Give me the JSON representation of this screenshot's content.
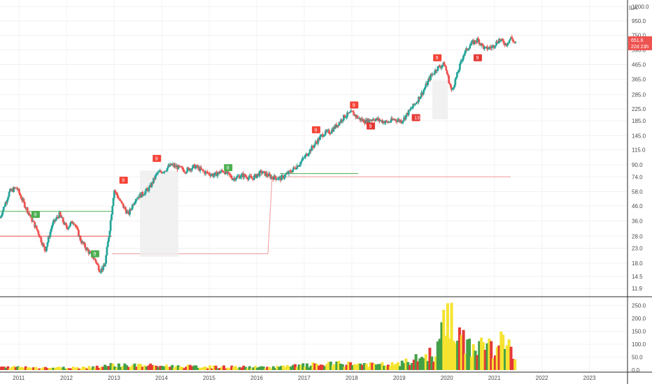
{
  "chart_data": {
    "type": "candlestick",
    "scale": "log",
    "currency": "ILA",
    "price_ticks": [
      1200.0,
      950.0,
      750.0,
      590.0,
      465.0,
      365.0,
      285.0,
      225.0,
      185.0,
      145.0,
      115.0,
      90.0,
      74.0,
      58.0,
      46.0,
      36.0,
      28.0,
      23.0,
      18.0,
      14.5,
      11.9
    ],
    "volume_ticks": [
      250.0,
      200.0,
      150.0,
      100.0,
      50.0,
      0.0
    ],
    "x_labels": [
      "2011",
      "2012",
      "2013",
      "2014",
      "2015",
      "2016",
      "2017",
      "2018",
      "2019",
      "2020",
      "2021",
      "2022",
      "2023"
    ],
    "x_start_year": 2010.6,
    "x_end_year": 2023.8,
    "last_price": "651.6",
    "countdown": "22d 23h",
    "colors": {
      "up": "#26a69a",
      "down": "#ef5350",
      "up_vol": "#43a047",
      "down_vol": "#e53935",
      "yellow_vol": "#f5e330",
      "setup_up": "#4caf50",
      "setup_down": "#f44336"
    },
    "price_path": [
      [
        2010.6,
        38
      ],
      [
        2010.8,
        58
      ],
      [
        2010.95,
        62
      ],
      [
        2011.1,
        48
      ],
      [
        2011.25,
        38
      ],
      [
        2011.4,
        30
      ],
      [
        2011.55,
        22
      ],
      [
        2011.7,
        34
      ],
      [
        2011.85,
        40
      ],
      [
        2012.0,
        32
      ],
      [
        2012.15,
        36
      ],
      [
        2012.3,
        26
      ],
      [
        2012.45,
        22
      ],
      [
        2012.6,
        19
      ],
      [
        2012.7,
        16
      ],
      [
        2012.8,
        17
      ],
      [
        2012.9,
        30
      ],
      [
        2013.0,
        60
      ],
      [
        2013.15,
        48
      ],
      [
        2013.3,
        40
      ],
      [
        2013.45,
        52
      ],
      [
        2013.6,
        56
      ],
      [
        2013.75,
        62
      ],
      [
        2013.9,
        78
      ],
      [
        2014.05,
        82
      ],
      [
        2014.2,
        90
      ],
      [
        2014.35,
        86
      ],
      [
        2014.5,
        82
      ],
      [
        2014.7,
        88
      ],
      [
        2014.9,
        80
      ],
      [
        2015.1,
        76
      ],
      [
        2015.3,
        82
      ],
      [
        2015.5,
        72
      ],
      [
        2015.7,
        76
      ],
      [
        2015.9,
        72
      ],
      [
        2016.1,
        80
      ],
      [
        2016.3,
        74
      ],
      [
        2016.5,
        72
      ],
      [
        2016.7,
        80
      ],
      [
        2016.9,
        92
      ],
      [
        2017.1,
        112
      ],
      [
        2017.25,
        130
      ],
      [
        2017.4,
        150
      ],
      [
        2017.55,
        155
      ],
      [
        2017.7,
        175
      ],
      [
        2017.85,
        200
      ],
      [
        2018.0,
        212
      ],
      [
        2018.15,
        192
      ],
      [
        2018.3,
        182
      ],
      [
        2018.45,
        192
      ],
      [
        2018.6,
        186
      ],
      [
        2018.75,
        180
      ],
      [
        2018.9,
        190
      ],
      [
        2019.05,
        184
      ],
      [
        2019.2,
        215
      ],
      [
        2019.35,
        250
      ],
      [
        2019.5,
        300
      ],
      [
        2019.65,
        380
      ],
      [
        2019.8,
        440
      ],
      [
        2019.95,
        470
      ],
      [
        2020.1,
        300
      ],
      [
        2020.2,
        380
      ],
      [
        2020.35,
        550
      ],
      [
        2020.5,
        650
      ],
      [
        2020.65,
        700
      ],
      [
        2020.8,
        600
      ],
      [
        2020.95,
        620
      ],
      [
        2021.1,
        700
      ],
      [
        2021.25,
        650
      ],
      [
        2021.35,
        720
      ],
      [
        2021.45,
        651.6
      ]
    ],
    "volume_values": [
      [
        2010.6,
        10
      ],
      [
        2011.0,
        12
      ],
      [
        2011.5,
        10
      ],
      [
        2012.0,
        9
      ],
      [
        2012.5,
        12
      ],
      [
        2013.0,
        20
      ],
      [
        2013.5,
        18
      ],
      [
        2014.0,
        16
      ],
      [
        2014.5,
        14
      ],
      [
        2015.0,
        12
      ],
      [
        2015.5,
        12
      ],
      [
        2016.0,
        11
      ],
      [
        2016.5,
        12
      ],
      [
        2017.0,
        18
      ],
      [
        2017.5,
        22
      ],
      [
        2018.0,
        25
      ],
      [
        2018.5,
        20
      ],
      [
        2019.0,
        22
      ],
      [
        2019.5,
        50
      ],
      [
        2019.8,
        70
      ],
      [
        2020.0,
        250
      ],
      [
        2020.2,
        120
      ],
      [
        2020.5,
        90
      ],
      [
        2020.8,
        100
      ],
      [
        2021.0,
        80
      ],
      [
        2021.2,
        110
      ],
      [
        2021.45,
        50
      ]
    ]
  }
}
